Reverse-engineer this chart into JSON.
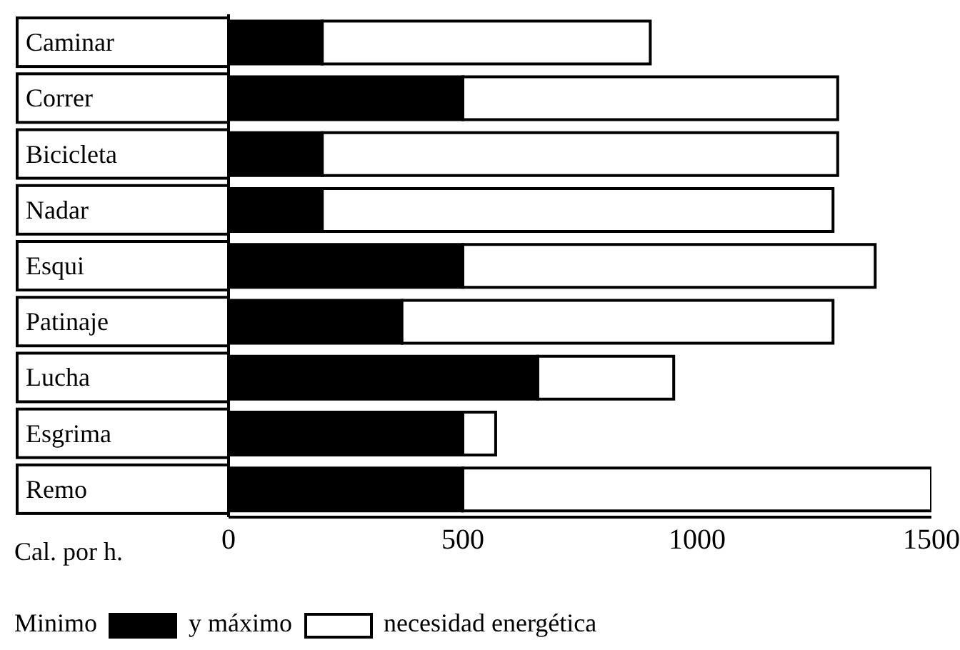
{
  "chart_data": {
    "type": "bar",
    "orientation": "horizontal",
    "stacked": true,
    "categories": [
      "Caminar",
      "Correr",
      "Bicicleta",
      "Nadar",
      "Esqui",
      "Patinaje",
      "Lucha",
      "Esgrima",
      "Remo"
    ],
    "series": [
      {
        "name": "Minimo",
        "color": "#000000",
        "values": [
          200,
          500,
          200,
          200,
          500,
          370,
          660,
          500,
          500
        ]
      },
      {
        "name": "y máximo",
        "color": "#ffffff",
        "values": [
          700,
          800,
          1100,
          1090,
          880,
          920,
          290,
          70,
          1000
        ]
      }
    ],
    "xlim": [
      0,
      1500
    ],
    "xticks": [
      0,
      500,
      1000,
      1500
    ],
    "xlabel": "Cal. por h.",
    "grid": false,
    "legend": "bottom",
    "annotations": [
      "necesidad energética"
    ]
  }
}
